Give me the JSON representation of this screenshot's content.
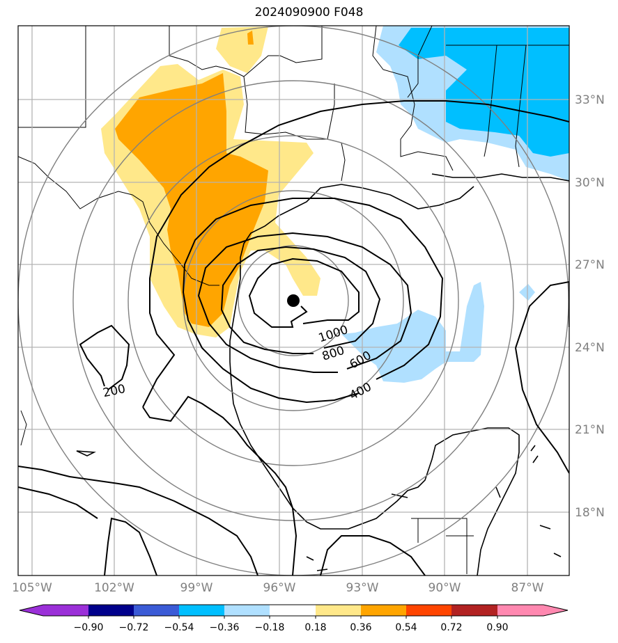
{
  "title": "2024090900 F048",
  "map": {
    "lon_ticks": [
      "105°W",
      "102°W",
      "99°W",
      "96°W",
      "93°W",
      "90°W",
      "87°W"
    ],
    "lat_ticks": [
      "33°N",
      "30°N",
      "27°N",
      "24°N",
      "21°N",
      "18°N"
    ],
    "contour_labels": [
      "1000",
      "800",
      "600",
      "400",
      "200"
    ],
    "storm_center": {
      "lat": 25.6,
      "lon": -95.4
    },
    "range_ring_radii_deg": [
      2,
      4,
      6,
      8,
      10
    ]
  },
  "colorbar": {
    "ticks": [
      "−0.90",
      "−0.72",
      "−0.54",
      "−0.36",
      "−0.18",
      "0.18",
      "0.36",
      "0.54",
      "0.72",
      "0.90"
    ],
    "colors": [
      "#9b30d8",
      "#00008b",
      "#3b5bd6",
      "#00bfff",
      "#b0e0ff",
      "#ffffff",
      "#ffe88a",
      "#ffa500",
      "#ff4500",
      "#b22222",
      "#ff88b0"
    ]
  }
}
